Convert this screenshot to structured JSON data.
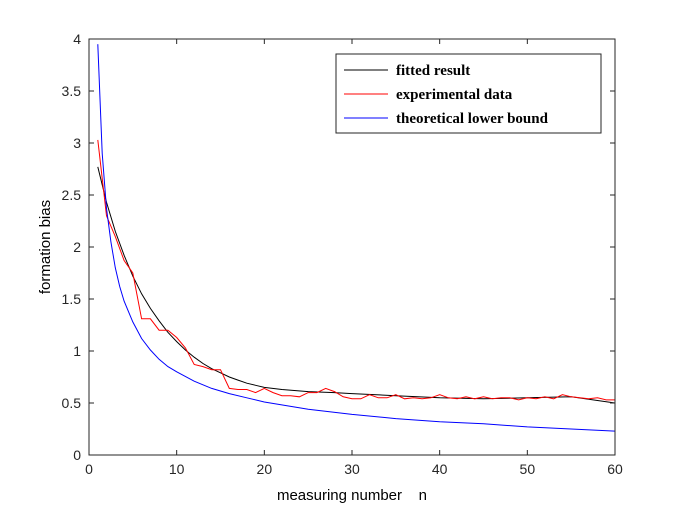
{
  "chart_data": {
    "type": "line",
    "title": "",
    "xlabel": "measuring number    n",
    "ylabel": "formation bias",
    "xlim": [
      0,
      60
    ],
    "ylim": [
      0,
      4
    ],
    "xticks": [
      0,
      10,
      20,
      30,
      40,
      50,
      60
    ],
    "yticks": [
      0,
      0.5,
      1,
      1.5,
      2,
      2.5,
      3,
      3.5,
      4
    ],
    "grid": false,
    "legend_position": "top-right",
    "series": [
      {
        "name": "fitted result",
        "color": "#000000",
        "x": [
          1,
          2,
          3,
          4,
          5,
          6,
          7,
          8,
          9,
          10,
          11,
          12,
          13,
          14,
          15,
          16,
          17,
          18,
          19,
          20,
          22,
          25,
          28,
          30,
          35,
          40,
          45,
          50,
          55,
          60
        ],
        "y": [
          2.77,
          2.43,
          2.15,
          1.92,
          1.72,
          1.55,
          1.41,
          1.29,
          1.18,
          1.09,
          1.01,
          0.94,
          0.88,
          0.83,
          0.79,
          0.75,
          0.72,
          0.69,
          0.67,
          0.65,
          0.63,
          0.61,
          0.6,
          0.59,
          0.57,
          0.55,
          0.54,
          0.55,
          0.56,
          0.5
        ]
      },
      {
        "name": "experimental data",
        "color": "#ff0000",
        "x": [
          1,
          2,
          3,
          4,
          5,
          6,
          7,
          8,
          9,
          10,
          11,
          12,
          13,
          14,
          15,
          16,
          17,
          18,
          19,
          20,
          21,
          22,
          23,
          24,
          25,
          26,
          27,
          28,
          29,
          30,
          31,
          32,
          33,
          34,
          35,
          36,
          37,
          38,
          39,
          40,
          41,
          42,
          43,
          44,
          45,
          46,
          47,
          48,
          49,
          50,
          51,
          52,
          53,
          54,
          55,
          56,
          57,
          58,
          59,
          60
        ],
        "y": [
          3.03,
          2.3,
          2.1,
          1.87,
          1.75,
          1.31,
          1.31,
          1.2,
          1.2,
          1.13,
          1.03,
          0.87,
          0.85,
          0.82,
          0.82,
          0.64,
          0.63,
          0.63,
          0.6,
          0.64,
          0.6,
          0.57,
          0.57,
          0.56,
          0.6,
          0.6,
          0.64,
          0.61,
          0.56,
          0.54,
          0.54,
          0.58,
          0.55,
          0.55,
          0.58,
          0.54,
          0.55,
          0.54,
          0.55,
          0.58,
          0.55,
          0.54,
          0.56,
          0.54,
          0.56,
          0.54,
          0.55,
          0.55,
          0.53,
          0.55,
          0.54,
          0.56,
          0.54,
          0.58,
          0.56,
          0.55,
          0.54,
          0.55,
          0.53,
          0.53
        ]
      },
      {
        "name": "theoretical lower bound",
        "color": "#0000ff",
        "x": [
          1,
          1.5,
          2,
          2.5,
          3,
          3.5,
          4,
          5,
          6,
          7,
          8,
          9,
          10,
          12,
          14,
          16,
          18,
          20,
          25,
          30,
          35,
          40,
          45,
          50,
          55,
          60
        ],
        "y": [
          3.95,
          2.9,
          2.37,
          2.05,
          1.8,
          1.62,
          1.48,
          1.28,
          1.12,
          1.01,
          0.92,
          0.85,
          0.8,
          0.71,
          0.64,
          0.59,
          0.55,
          0.51,
          0.44,
          0.39,
          0.35,
          0.32,
          0.3,
          0.27,
          0.25,
          0.23
        ]
      }
    ]
  }
}
